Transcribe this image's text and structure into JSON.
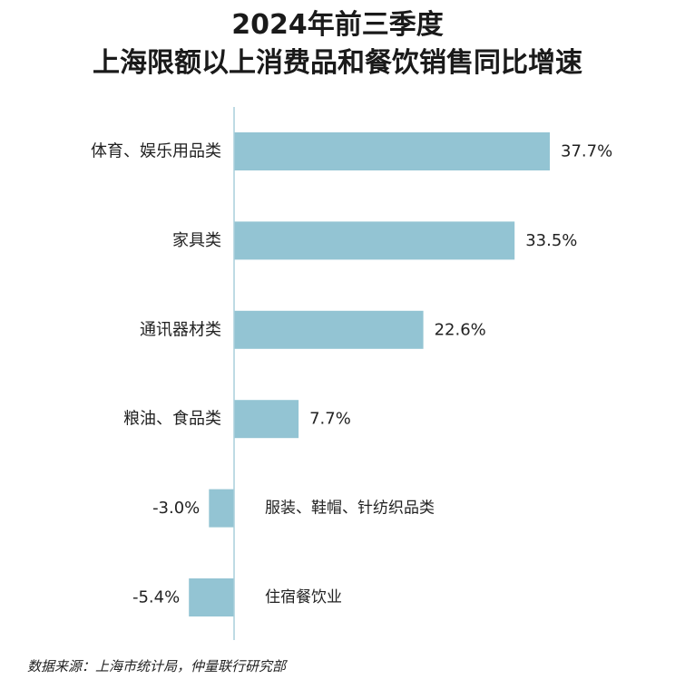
{
  "title_line1": "2024年前三季度",
  "title_line2": "上海限额以上消费品和餐饮销售同比增速",
  "source": "数据来源：上海市统计局，仲量联行研究部",
  "colors": {
    "bar": "#93c4d3",
    "axis": "#a9cfdb",
    "text": "#222222"
  },
  "chart_data": {
    "type": "bar",
    "orientation": "horizontal",
    "title": "2024年前三季度 上海限额以上消费品和餐饮销售同比增速",
    "categories": [
      "体育、娱乐用品类",
      "家具类",
      "通讯器材类",
      "粮油、食品类",
      "服装、鞋帽、针纺织品类",
      "住宿餐饮业"
    ],
    "values": [
      37.7,
      33.5,
      22.6,
      7.7,
      -3.0,
      -5.4
    ],
    "value_labels": [
      "37.7%",
      "33.5%",
      "22.6%",
      "7.7%",
      "-3.0%",
      "-5.4%"
    ],
    "unit": "%",
    "xlim": [
      -6,
      40
    ],
    "grid": false,
    "legend": "none"
  }
}
